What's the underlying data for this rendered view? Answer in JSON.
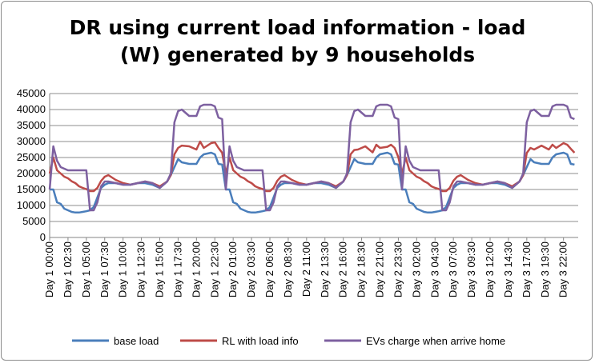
{
  "chart_data": {
    "type": "line",
    "title_line1": "DR using current load information - load",
    "title_line2": "(W) generated by 9 households",
    "xlabel": "",
    "ylabel": "",
    "ylim": [
      0,
      45000
    ],
    "yticks": [
      0,
      5000,
      10000,
      15000,
      20000,
      25000,
      30000,
      35000,
      40000,
      45000
    ],
    "x_tick_labels": [
      "Day 1 00:00",
      "Day 1 02:30",
      "Day 1 05:00",
      "Day 1 07:30",
      "Day 1 10:00",
      "Day 1 12:30",
      "Day 1 15:00",
      "Day 1 17:30",
      "Day 1 20:00",
      "Day 1 22:30",
      "Day 2 01:00",
      "Day 2 03:30",
      "Day 2 06:00",
      "Day 2 08:30",
      "Day 2 11:00",
      "Day 2 13:30",
      "Day 2 16:00",
      "Day 2 18:30",
      "Day 2 21:00",
      "Day 2 23:30",
      "Day 3 02:00",
      "Day 3 04:30",
      "Day 3 07:00",
      "Day 3 09:30",
      "Day 3 12:00",
      "Day 3 14:30",
      "Day 3 17:00",
      "Day 3 19:30",
      "Day 3 22:00"
    ],
    "x_hours_per_tick": 2.5,
    "x_total_hours": 72,
    "grid": "horizontal",
    "legend_position": "bottom",
    "day_profile_hours": [
      0,
      0.5,
      1,
      1.5,
      2,
      2.5,
      3,
      3.5,
      4,
      4.5,
      5,
      5.5,
      6,
      6.5,
      7,
      7.5,
      8,
      9,
      10,
      11,
      12,
      13,
      14,
      15,
      16,
      16.5,
      17,
      17.5,
      18,
      19,
      20,
      20.5,
      21,
      22,
      22.5,
      23,
      23.5
    ],
    "series": [
      {
        "name": "base load",
        "color": "#4a7ebb",
        "day_profile": [
          15000,
          15000,
          11000,
          10500,
          9000,
          8500,
          8000,
          7800,
          7800,
          8000,
          8200,
          8500,
          9500,
          12500,
          15500,
          16500,
          17000,
          17000,
          16500,
          16500,
          17000,
          17000,
          16500,
          15500,
          17500,
          19500,
          22000,
          24500,
          23500,
          23000,
          23000,
          25000,
          26000,
          26500,
          26000,
          23000,
          22800
        ]
      },
      {
        "name": "RL with load info",
        "color": "#be4b48",
        "day_profile": [
          20000,
          25000,
          21000,
          20000,
          19000,
          18500,
          17500,
          17000,
          16000,
          15500,
          15000,
          14500,
          14500,
          15500,
          17500,
          19000,
          19500,
          18000,
          17000,
          16500,
          17000,
          17500,
          17000,
          16000,
          17500,
          19500,
          26000,
          28000,
          27500,
          28500,
          27500,
          29000,
          28000,
          29500,
          29000,
          28000,
          26500
        ]
      },
      {
        "name": "EVs charge when arrive home",
        "color": "#7d60a0",
        "day_profile": [
          15000,
          28500,
          24000,
          22000,
          21500,
          21000,
          21000,
          21000,
          21000,
          21000,
          21000,
          8500,
          8500,
          11000,
          16000,
          17500,
          17500,
          17000,
          16500,
          16500,
          17000,
          17500,
          17000,
          15500,
          17500,
          20000,
          36000,
          39500,
          40000,
          38000,
          38000,
          41000,
          41500,
          41500,
          41000,
          37500,
          37000
        ]
      }
    ]
  }
}
